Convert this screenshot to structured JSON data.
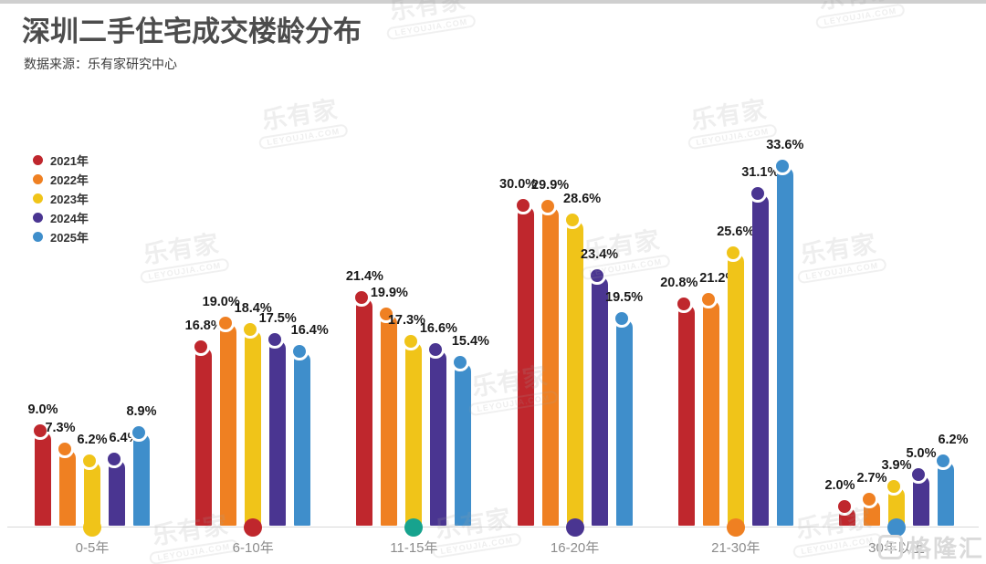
{
  "header": {
    "title": "深圳二手住宅成交楼龄分布",
    "source": "数据来源：乐有家研究中心"
  },
  "watermark": {
    "brand": "乐有家",
    "domain": "LEYOUJIA.COM"
  },
  "media_logo": {
    "letter": "G",
    "text": "格隆汇"
  },
  "chart_data": {
    "type": "bar",
    "title": "深圳二手住宅成交楼龄分布",
    "categories": [
      "0-5年",
      "6-10年",
      "11-15年",
      "16-20年",
      "21-30年",
      "30年以上"
    ],
    "series": [
      {
        "name": "2021年",
        "color": "#bf272d",
        "values": [
          9.0,
          16.8,
          21.4,
          30.0,
          20.8,
          2.0
        ]
      },
      {
        "name": "2022年",
        "color": "#ef8022",
        "values": [
          7.3,
          19.0,
          19.9,
          29.9,
          21.2,
          2.7
        ]
      },
      {
        "name": "2023年",
        "color": "#f0c419",
        "values": [
          6.2,
          18.4,
          17.3,
          28.6,
          25.6,
          3.9
        ]
      },
      {
        "name": "2024年",
        "color": "#4a3591",
        "values": [
          6.4,
          17.5,
          16.6,
          23.4,
          31.1,
          5.0
        ]
      },
      {
        "name": "2025年",
        "color": "#3f8ecb",
        "values": [
          8.9,
          16.4,
          15.4,
          19.5,
          33.6,
          6.2
        ]
      }
    ],
    "value_suffix": "%",
    "value_decimals": 1,
    "category_marker_colors": [
      "#f0c419",
      "#bf272d",
      "#17a38e",
      "#4a3591",
      "#ef8022",
      "#3f8ecb"
    ],
    "legend_position": "top-left",
    "grid": false,
    "ylim": [
      0,
      35
    ]
  }
}
